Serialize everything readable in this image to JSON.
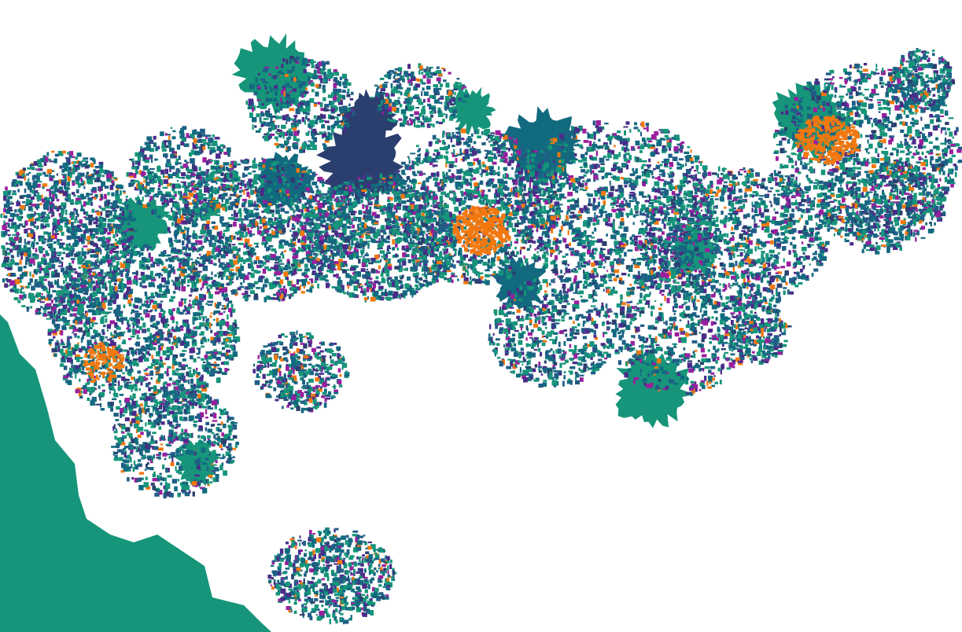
{
  "image": {
    "background_color": "#ffffff",
    "palette": {
      "teal_green": "#16957a",
      "teal_blue": "#126a7f",
      "slate_blue": "#1f5e86",
      "navy": "#2b3f6f",
      "indigo": "#4b2b8a",
      "magenta": "#9a1f9e",
      "orange": "#f2780f"
    }
  }
}
